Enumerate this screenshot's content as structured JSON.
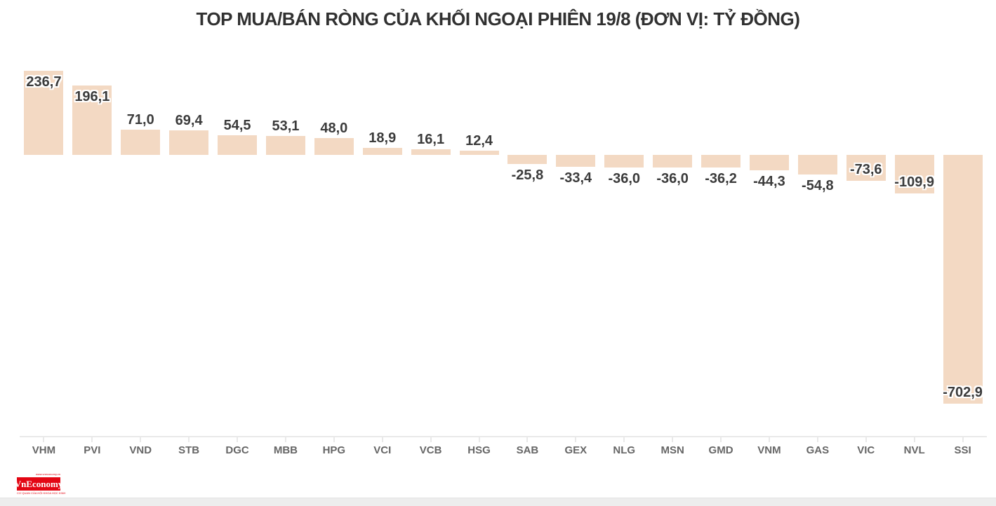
{
  "chart_data": {
    "type": "bar",
    "title": "TOP MUA/BÁN RÒNG CỦA KHỐI NGOẠI PHIÊN 19/8 (ĐƠN VỊ: TỶ ĐỒNG)",
    "unit": "tỷ đồng",
    "categories": [
      "VHM",
      "PVI",
      "VND",
      "STB",
      "DGC",
      "MBB",
      "HPG",
      "VCI",
      "VCB",
      "HSG",
      "SAB",
      "GEX",
      "NLG",
      "MSN",
      "GMD",
      "VNM",
      "GAS",
      "VIC",
      "NVL",
      "SSI"
    ],
    "values": [
      236.7,
      196.1,
      71.0,
      69.4,
      54.5,
      53.1,
      48.0,
      18.9,
      16.1,
      12.4,
      -25.8,
      -33.4,
      -36.0,
      -36.0,
      -36.2,
      -44.3,
      -54.8,
      -73.6,
      -109.9,
      -702.9
    ],
    "value_labels": [
      "236,7",
      "196,1",
      "71,0",
      "69,4",
      "54,5",
      "53,1",
      "48,0",
      "18,9",
      "16,1",
      "12,4",
      "-25,8",
      "-33,4",
      "-36,0",
      "-36,0",
      "-36,2",
      "-44,3",
      "-54,8",
      "-73,6",
      "-109,9",
      "-702,9"
    ],
    "ylim": [
      -720,
      250
    ],
    "grid": false,
    "legend": false,
    "bar_color": "#f3d9c3",
    "value_label_color": "#3b3b3b",
    "category_label_color": "#666666",
    "axis_color": "#e9e9e9"
  },
  "footer": {
    "logo_text": "VnEconomy",
    "logo_top_text": "www.vneconomy.vn",
    "logo_bottom_text": "CƠ QUAN CỦA HỘI KHOA HỌC KINH TẾ VIỆT NAM",
    "logo_bg": "#e30613",
    "logo_text_color": "#e30613"
  }
}
